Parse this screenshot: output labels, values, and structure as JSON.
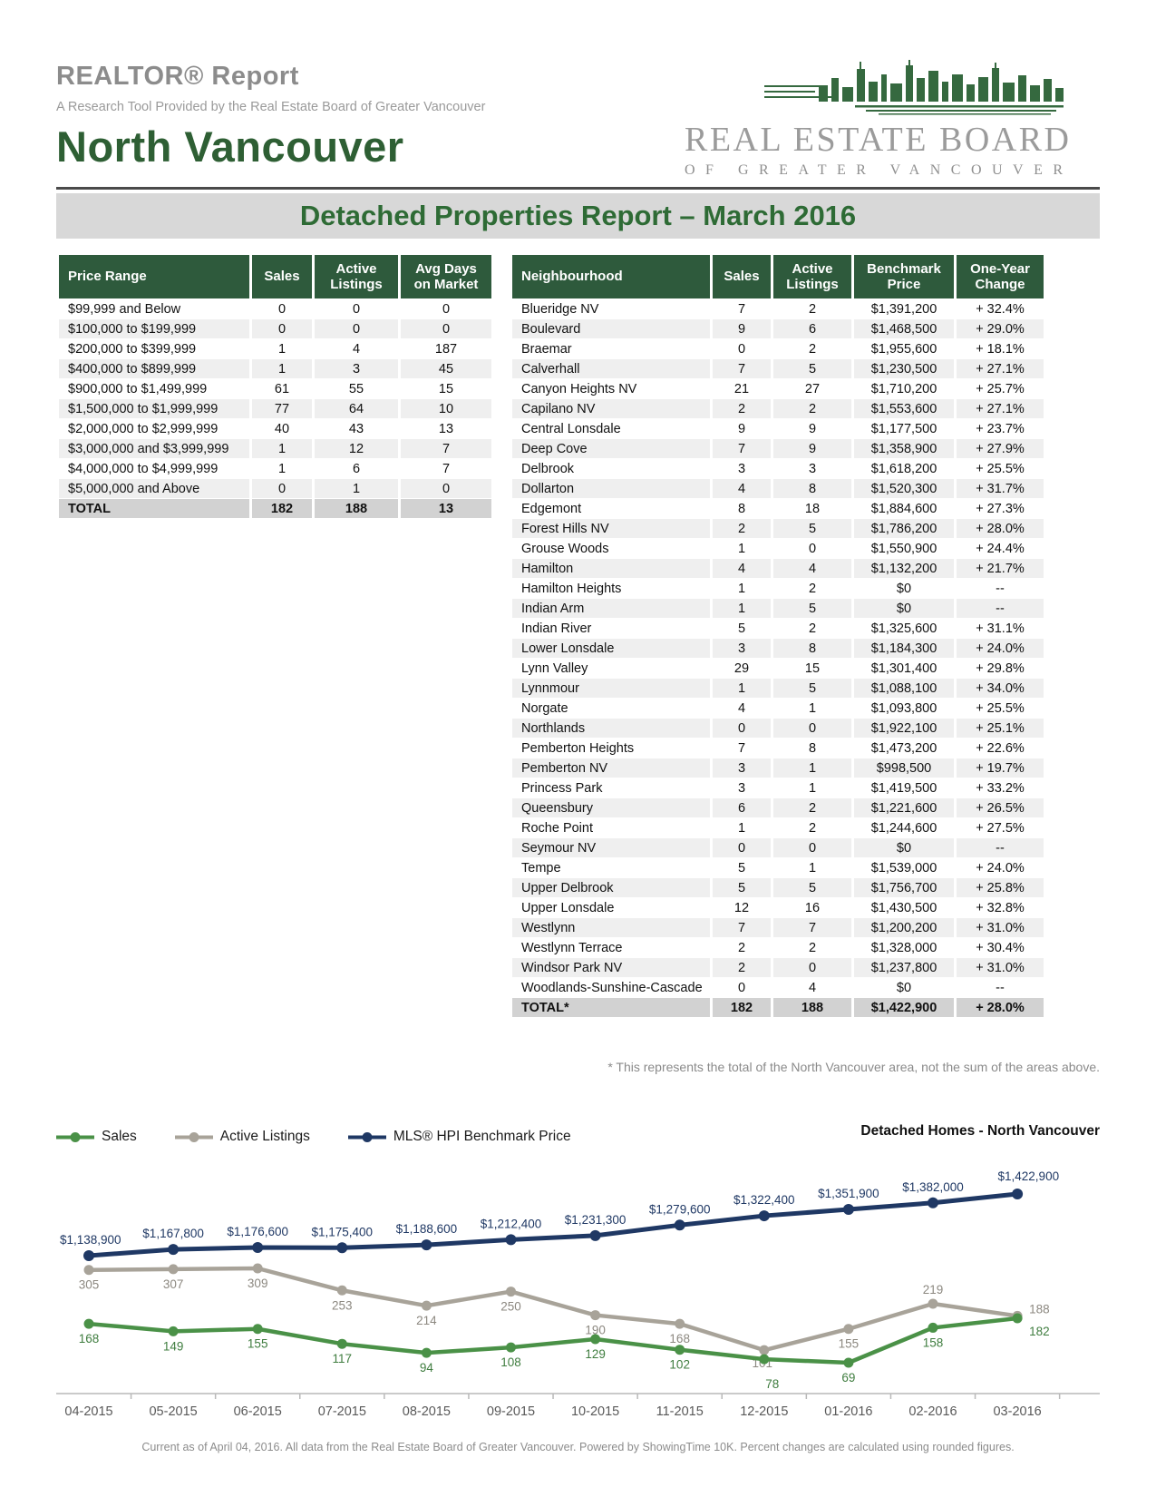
{
  "report": {
    "kicker": "REALTOR® Report",
    "subtitle": "A Research Tool Provided by the Real Estate Board of Greater Vancouver",
    "area_title": "North Vancouver",
    "banner_title": "Detached Properties Report – March 2016",
    "footnote": "* This represents the total of the North Vancouver area, not the sum of the areas above.",
    "footer": "Current as of April 04, 2016. All data from the Real Estate Board of Greater Vancouver.  Powered by ShowingTime 10K. Percent changes are calculated using rounded figures."
  },
  "logo": {
    "skyline_icon": "city-skyline-icon",
    "line1": "REAL ESTATE BOARD",
    "line2": "OF GREATER VANCOUVER"
  },
  "colors": {
    "header_green": "#2e5a3c",
    "title_green": "#2e5f34",
    "banner_green": "#2e6b35",
    "banner_gray": "#d8d8d8",
    "row_alt_gray": "#efefef",
    "total_row_gray": "#d2d2d2",
    "sales_green": "#4a9147",
    "listings_gray": "#a8a399",
    "benchmark_navy": "#1f3864"
  },
  "price_table": {
    "headers": [
      "Price Range",
      "Sales",
      "Active Listings",
      "Avg Days on Market"
    ],
    "rows": [
      [
        "$99,999 and Below",
        "0",
        "0",
        "0"
      ],
      [
        "$100,000 to $199,999",
        "0",
        "0",
        "0"
      ],
      [
        "$200,000 to $399,999",
        "1",
        "4",
        "187"
      ],
      [
        "$400,000 to $899,999",
        "1",
        "3",
        "45"
      ],
      [
        "$900,000 to $1,499,999",
        "61",
        "55",
        "15"
      ],
      [
        "$1,500,000 to $1,999,999",
        "77",
        "64",
        "10"
      ],
      [
        "$2,000,000 to $2,999,999",
        "40",
        "43",
        "13"
      ],
      [
        "$3,000,000 and $3,999,999",
        "1",
        "12",
        "7"
      ],
      [
        "$4,000,000 to $4,999,999",
        "1",
        "6",
        "7"
      ],
      [
        "$5,000,000 and Above",
        "0",
        "1",
        "0"
      ]
    ],
    "total": [
      "TOTAL",
      "182",
      "188",
      "13"
    ]
  },
  "neighbourhood_table": {
    "headers": [
      "Neighbourhood",
      "Sales",
      "Active Listings",
      "Benchmark Price",
      "One-Year Change"
    ],
    "rows": [
      [
        "Blueridge NV",
        "7",
        "2",
        "$1,391,200",
        "+ 32.4%"
      ],
      [
        "Boulevard",
        "9",
        "6",
        "$1,468,500",
        "+ 29.0%"
      ],
      [
        "Braemar",
        "0",
        "2",
        "$1,955,600",
        "+ 18.1%"
      ],
      [
        "Calverhall",
        "7",
        "5",
        "$1,230,500",
        "+ 27.1%"
      ],
      [
        "Canyon Heights NV",
        "21",
        "27",
        "$1,710,200",
        "+ 25.7%"
      ],
      [
        "Capilano NV",
        "2",
        "2",
        "$1,553,600",
        "+ 27.1%"
      ],
      [
        "Central Lonsdale",
        "9",
        "9",
        "$1,177,500",
        "+ 23.7%"
      ],
      [
        "Deep Cove",
        "7",
        "9",
        "$1,358,900",
        "+ 27.9%"
      ],
      [
        "Delbrook",
        "3",
        "3",
        "$1,618,200",
        "+ 25.5%"
      ],
      [
        "Dollarton",
        "4",
        "8",
        "$1,520,300",
        "+ 31.7%"
      ],
      [
        "Edgemont",
        "8",
        "18",
        "$1,884,600",
        "+ 27.3%"
      ],
      [
        "Forest Hills NV",
        "2",
        "5",
        "$1,786,200",
        "+ 28.0%"
      ],
      [
        "Grouse Woods",
        "1",
        "0",
        "$1,550,900",
        "+ 24.4%"
      ],
      [
        "Hamilton",
        "4",
        "4",
        "$1,132,200",
        "+ 21.7%"
      ],
      [
        "Hamilton Heights",
        "1",
        "2",
        "$0",
        "--"
      ],
      [
        "Indian Arm",
        "1",
        "5",
        "$0",
        "--"
      ],
      [
        "Indian River",
        "5",
        "2",
        "$1,325,600",
        "+ 31.1%"
      ],
      [
        "Lower Lonsdale",
        "3",
        "8",
        "$1,184,300",
        "+ 24.0%"
      ],
      [
        "Lynn Valley",
        "29",
        "15",
        "$1,301,400",
        "+ 29.8%"
      ],
      [
        "Lynnmour",
        "1",
        "5",
        "$1,088,100",
        "+ 34.0%"
      ],
      [
        "Norgate",
        "4",
        "1",
        "$1,093,800",
        "+ 25.5%"
      ],
      [
        "Northlands",
        "0",
        "0",
        "$1,922,100",
        "+ 25.1%"
      ],
      [
        "Pemberton Heights",
        "7",
        "8",
        "$1,473,200",
        "+ 22.6%"
      ],
      [
        "Pemberton NV",
        "3",
        "1",
        "$998,500",
        "+ 19.7%"
      ],
      [
        "Princess Park",
        "3",
        "1",
        "$1,419,500",
        "+ 33.2%"
      ],
      [
        "Queensbury",
        "6",
        "2",
        "$1,221,600",
        "+ 26.5%"
      ],
      [
        "Roche Point",
        "1",
        "2",
        "$1,244,600",
        "+ 27.5%"
      ],
      [
        "Seymour NV",
        "0",
        "0",
        "$0",
        "--"
      ],
      [
        "Tempe",
        "5",
        "1",
        "$1,539,000",
        "+ 24.0%"
      ],
      [
        "Upper Delbrook",
        "5",
        "5",
        "$1,756,700",
        "+ 25.8%"
      ],
      [
        "Upper Lonsdale",
        "12",
        "16",
        "$1,430,500",
        "+ 32.8%"
      ],
      [
        "Westlynn",
        "7",
        "7",
        "$1,200,200",
        "+ 31.0%"
      ],
      [
        "Westlynn Terrace",
        "2",
        "2",
        "$1,328,000",
        "+ 30.4%"
      ],
      [
        "Windsor Park NV",
        "2",
        "0",
        "$1,237,800",
        "+ 31.0%"
      ],
      [
        "Woodlands-Sunshine-Cascade",
        "0",
        "4",
        "$0",
        "--"
      ]
    ],
    "total": [
      "TOTAL*",
      "182",
      "188",
      "$1,422,900",
      "+ 28.0%"
    ]
  },
  "chart_data": {
    "type": "line",
    "title": "Detached Homes - North Vancouver",
    "x": [
      "04-2015",
      "05-2015",
      "06-2015",
      "07-2015",
      "08-2015",
      "09-2015",
      "10-2015",
      "11-2015",
      "12-2015",
      "01-2016",
      "02-2016",
      "03-2016"
    ],
    "series": [
      {
        "name": "Sales",
        "role": "green",
        "color": "#4a9147",
        "label_color": "#3f7d3f",
        "values": [
          168,
          149,
          155,
          117,
          94,
          108,
          129,
          102,
          78,
          69,
          158,
          182
        ]
      },
      {
        "name": "Active Listings",
        "role": "gray",
        "color": "#a8a399",
        "label_color": "#8c8880",
        "values": [
          305,
          307,
          309,
          253,
          214,
          250,
          190,
          168,
          101,
          155,
          219,
          188
        ]
      },
      {
        "name": "MLS® HPI Benchmark Price",
        "role": "price",
        "color": "#1f3864",
        "label_color": "#1f3864",
        "format": "currency",
        "values": [
          1138900,
          1167800,
          1176600,
          1175400,
          1188600,
          1212400,
          1231300,
          1279600,
          1322400,
          1351900,
          1382000,
          1422900
        ]
      }
    ],
    "legend_position": "top-left",
    "grid": false,
    "y_axis": "hidden",
    "count_axis_range": [
      69,
      309
    ],
    "price_axis_range": [
      1138900,
      1422900
    ]
  }
}
